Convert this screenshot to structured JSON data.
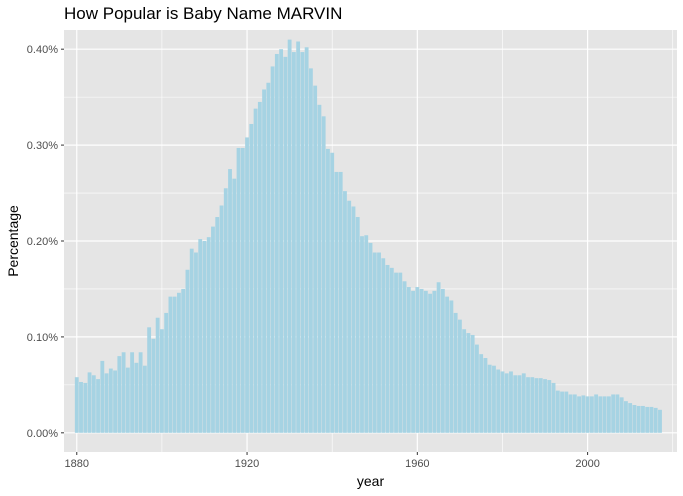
{
  "chart_data": {
    "type": "bar",
    "title": "How Popular is Baby Name MARVIN",
    "xlabel": "year",
    "ylabel": "Percentage",
    "xlim": [
      1877,
      2021
    ],
    "ylim": [
      -0.0002,
      0.0042
    ],
    "xticks": [
      1880,
      1920,
      1960,
      2000
    ],
    "yticks": [
      0.0,
      0.001,
      0.002,
      0.003,
      0.004
    ],
    "ytick_labels": [
      "0.00%",
      "0.10%",
      "0.20%",
      "0.30%",
      "0.40%"
    ],
    "grid": true,
    "bar_color": "#a6d3e3",
    "panel_color": "#e5e5e5",
    "grid_color": "#ffffff",
    "x": [
      1880,
      1881,
      1882,
      1883,
      1884,
      1885,
      1886,
      1887,
      1888,
      1889,
      1890,
      1891,
      1892,
      1893,
      1894,
      1895,
      1896,
      1897,
      1898,
      1899,
      1900,
      1901,
      1902,
      1903,
      1904,
      1905,
      1906,
      1907,
      1908,
      1909,
      1910,
      1911,
      1912,
      1913,
      1914,
      1915,
      1916,
      1917,
      1918,
      1919,
      1920,
      1921,
      1922,
      1923,
      1924,
      1925,
      1926,
      1927,
      1928,
      1929,
      1930,
      1931,
      1932,
      1933,
      1934,
      1935,
      1936,
      1937,
      1938,
      1939,
      1940,
      1941,
      1942,
      1943,
      1944,
      1945,
      1946,
      1947,
      1948,
      1949,
      1950,
      1951,
      1952,
      1953,
      1954,
      1955,
      1956,
      1957,
      1958,
      1959,
      1960,
      1961,
      1962,
      1963,
      1964,
      1965,
      1966,
      1967,
      1968,
      1969,
      1970,
      1971,
      1972,
      1973,
      1974,
      1975,
      1976,
      1977,
      1978,
      1979,
      1980,
      1981,
      1982,
      1983,
      1984,
      1985,
      1986,
      1987,
      1988,
      1989,
      1990,
      1991,
      1992,
      1993,
      1994,
      1995,
      1996,
      1997,
      1998,
      1999,
      2000,
      2001,
      2002,
      2003,
      2004,
      2005,
      2006,
      2007,
      2008,
      2009,
      2010,
      2011,
      2012,
      2013,
      2014,
      2015,
      2016,
      2017
    ],
    "values": [
      0.00058,
      0.00053,
      0.00052,
      0.00063,
      0.0006,
      0.00056,
      0.00075,
      0.00062,
      0.00067,
      0.00065,
      0.0008,
      0.00084,
      0.00068,
      0.00084,
      0.00073,
      0.00084,
      0.0007,
      0.0011,
      0.00098,
      0.0012,
      0.00108,
      0.00125,
      0.00142,
      0.00142,
      0.00146,
      0.0015,
      0.0017,
      0.00192,
      0.00188,
      0.00202,
      0.002,
      0.00204,
      0.00215,
      0.00225,
      0.00237,
      0.00255,
      0.00275,
      0.00265,
      0.00297,
      0.00297,
      0.00308,
      0.00322,
      0.00338,
      0.00345,
      0.00358,
      0.00365,
      0.00382,
      0.00395,
      0.004,
      0.00392,
      0.0041,
      0.00397,
      0.00408,
      0.00397,
      0.00402,
      0.0038,
      0.00362,
      0.00342,
      0.0033,
      0.00296,
      0.00292,
      0.00272,
      0.00272,
      0.00252,
      0.00242,
      0.00236,
      0.00225,
      0.00205,
      0.00206,
      0.00198,
      0.00188,
      0.00188,
      0.00182,
      0.00175,
      0.00172,
      0.00167,
      0.00167,
      0.00158,
      0.00152,
      0.00148,
      0.00152,
      0.0015,
      0.00148,
      0.00145,
      0.00148,
      0.00157,
      0.0015,
      0.00142,
      0.00138,
      0.00125,
      0.00118,
      0.00108,
      0.00104,
      0.00102,
      0.00092,
      0.00082,
      0.00078,
      0.00071,
      0.0007,
      0.00066,
      0.00064,
      0.00062,
      0.00064,
      0.0006,
      0.0006,
      0.00062,
      0.00058,
      0.00058,
      0.00057,
      0.00057,
      0.00056,
      0.00055,
      0.00052,
      0.00044,
      0.00043,
      0.00043,
      0.0004,
      0.0004,
      0.00038,
      0.00039,
      0.00038,
      0.00038,
      0.0004,
      0.00038,
      0.00038,
      0.00038,
      0.0004,
      0.0004,
      0.00037,
      0.00033,
      0.00031,
      0.00029,
      0.00028,
      0.00028,
      0.00027,
      0.00027,
      0.00026,
      0.00024
    ]
  }
}
